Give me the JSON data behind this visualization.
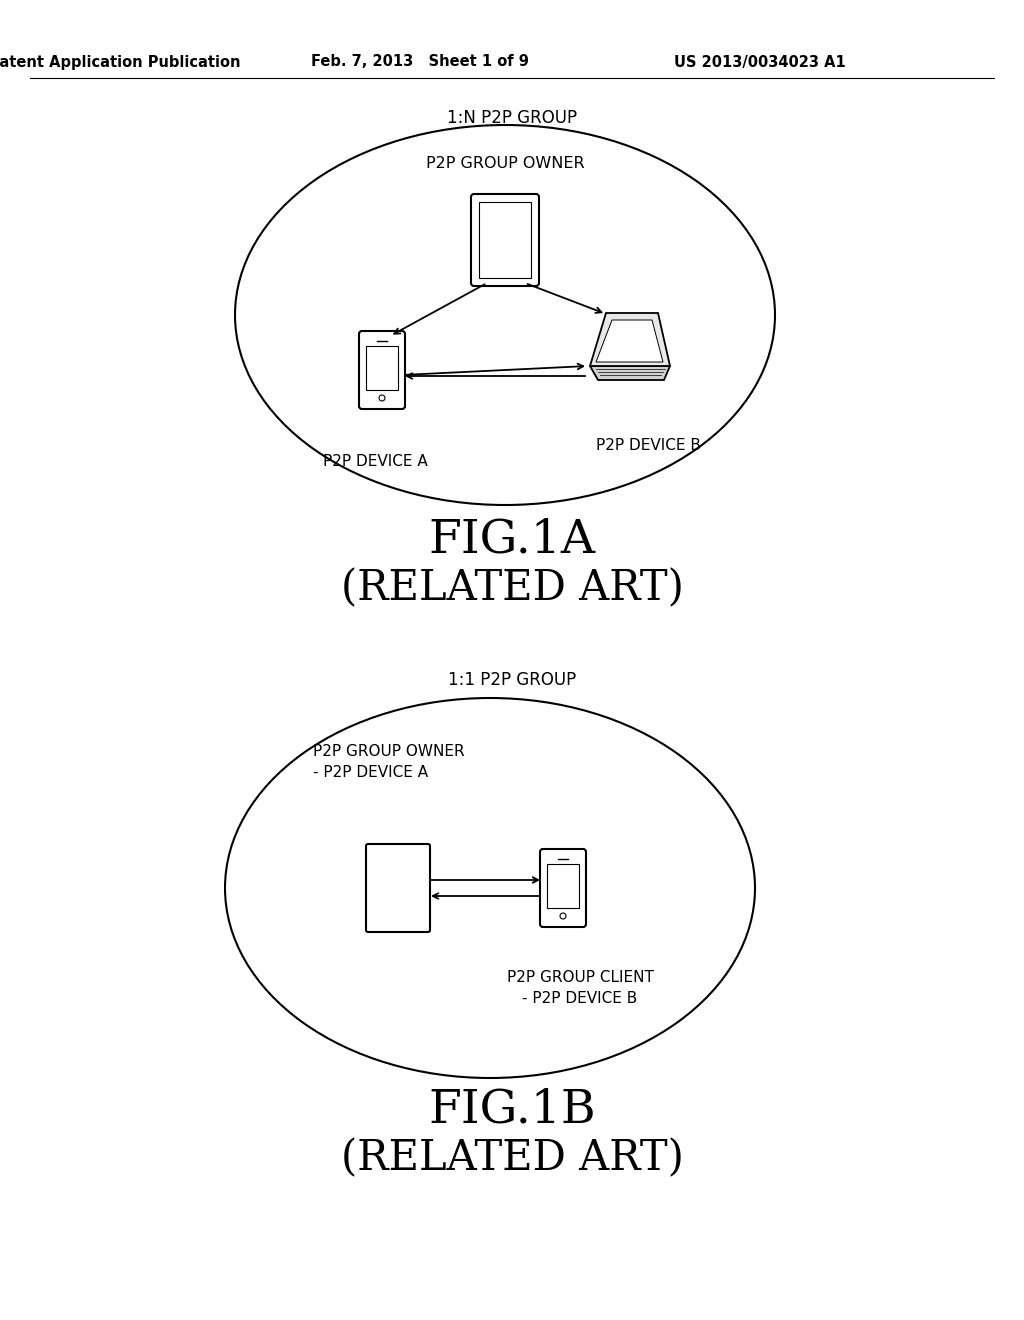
{
  "bg_color": "#ffffff",
  "header_left": "Patent Application Publication",
  "header_mid": "Feb. 7, 2013   Sheet 1 of 9",
  "header_right": "US 2013/0034023 A1",
  "fig1a_title": "1:N P2P GROUP",
  "fig1a_label_line1": "FIG.1A",
  "fig1a_label_line2": "(RELATED ART)",
  "fig1b_title": "1:1 P2P GROUP",
  "fig1b_label_line1": "FIG.1B",
  "fig1b_label_line2": "(RELATED ART)",
  "line_color": "#000000",
  "text_color": "#000000"
}
